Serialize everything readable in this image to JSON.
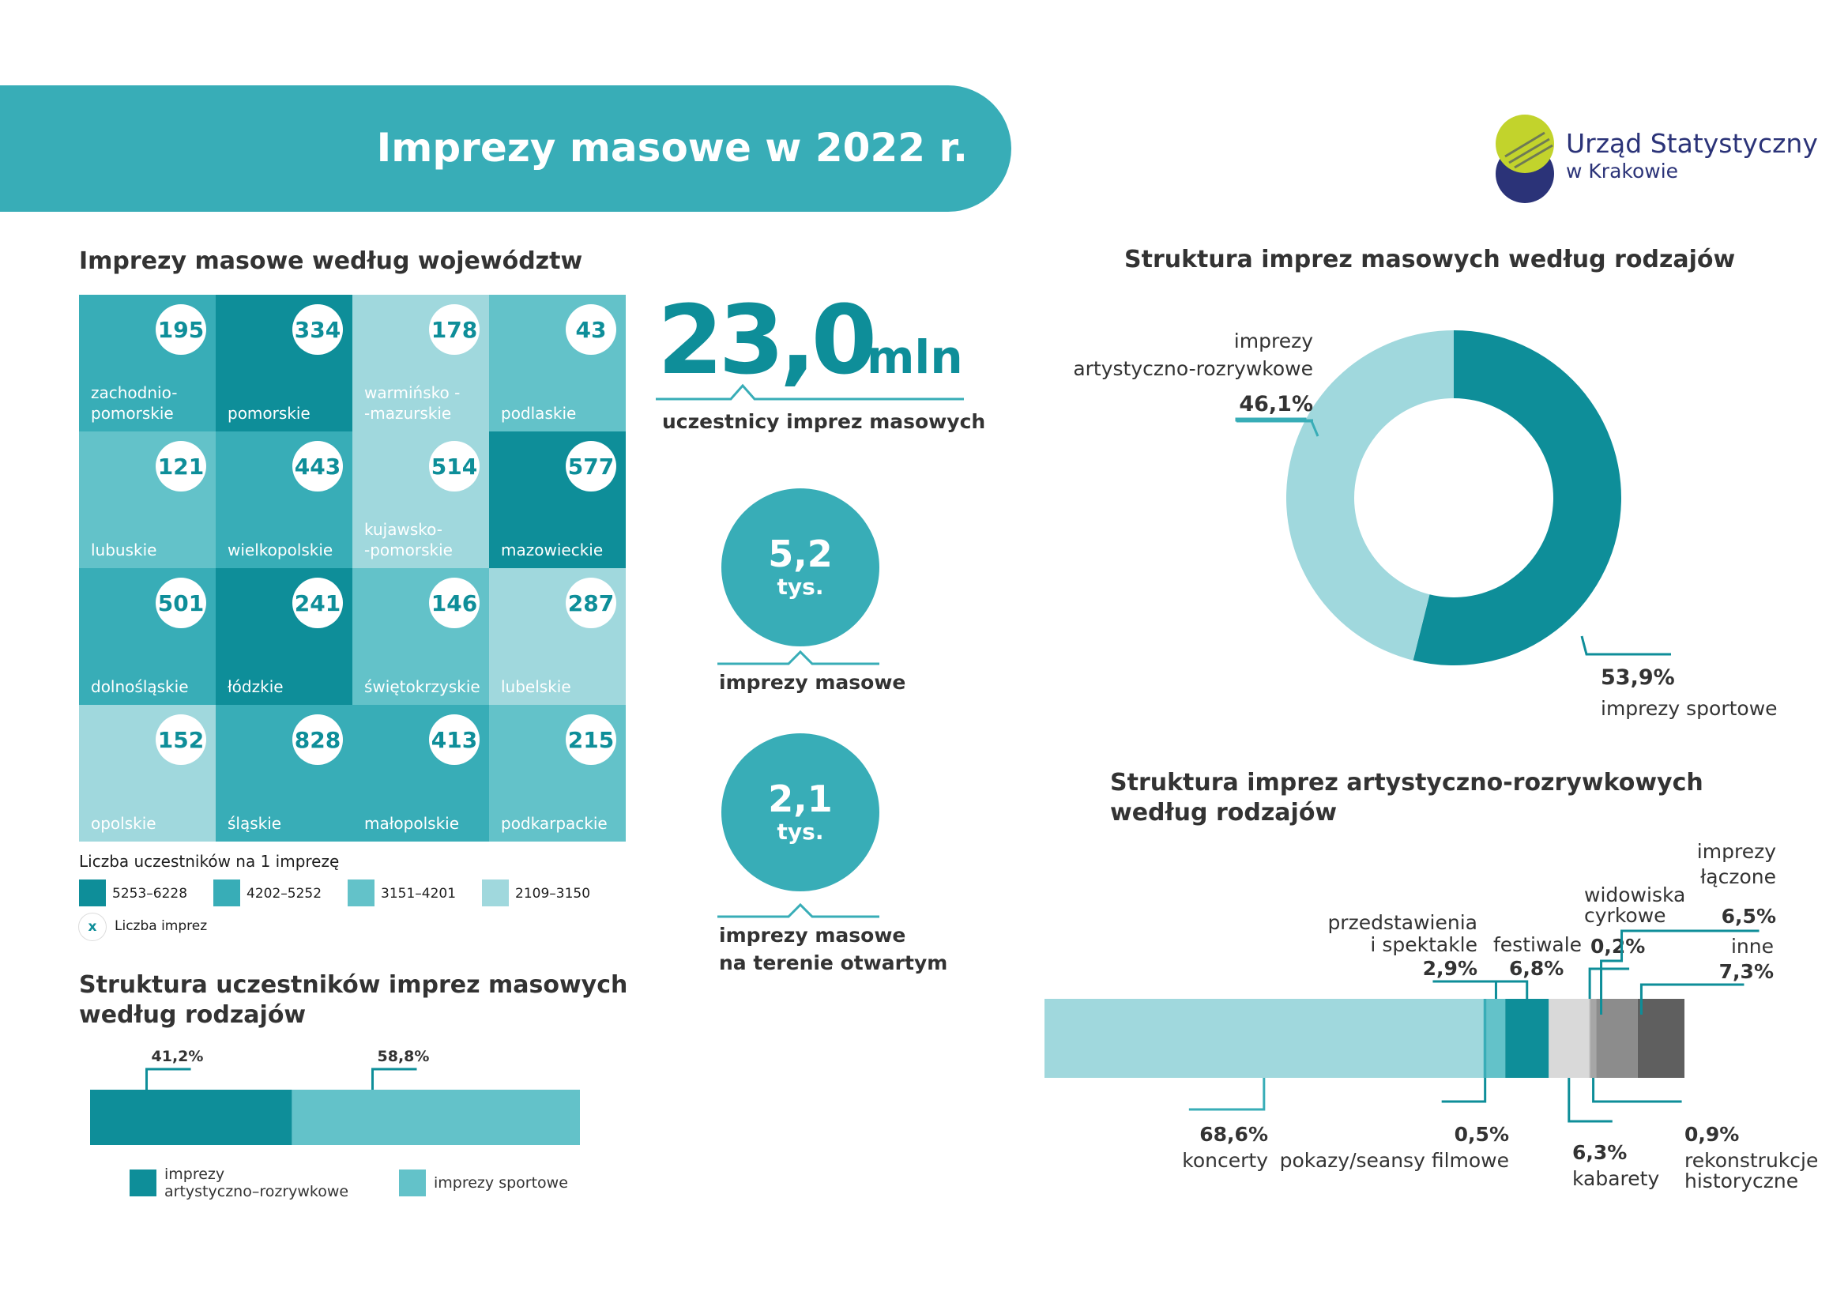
{
  "banner": {
    "title": "Imprezy masowe w 2022 r."
  },
  "logo": {
    "line1": "Urząd Statystyczny",
    "line2": "w Krakowie"
  },
  "voivodeships": {
    "title": "Imprezy masowe według województw",
    "cells": [
      {
        "name": "zachodnio-\npomorskie",
        "value": "195",
        "color": "#38adb7"
      },
      {
        "name": "pomorskie",
        "value": "334",
        "color": "#0e8e99"
      },
      {
        "name": "warmińsko -\n-mazurskie",
        "value": "178",
        "color": "#a0d8dd"
      },
      {
        "name": "podlaskie",
        "value": "43",
        "color": "#63c2c9"
      },
      {
        "name": "lubuskie",
        "value": "121",
        "color": "#63c2c9"
      },
      {
        "name": "wielkopolskie",
        "value": "443",
        "color": "#38adb7"
      },
      {
        "name": "kujawsko-\n-pomorskie",
        "value": "514",
        "color": "#a0d8dd"
      },
      {
        "name": "mazowieckie",
        "value": "577",
        "color": "#0e8e99"
      },
      {
        "name": "dolnośląskie",
        "value": "501",
        "color": "#38adb7"
      },
      {
        "name": "łódzkie",
        "value": "241",
        "color": "#0e8e99"
      },
      {
        "name": "świętokrzyskie",
        "value": "146",
        "color": "#63c2c9"
      },
      {
        "name": "lubelskie",
        "value": "287",
        "color": "#a0d8dd"
      },
      {
        "name": "opolskie",
        "value": "152",
        "color": "#a0d8dd"
      },
      {
        "name": "śląskie",
        "value": "828",
        "color": "#38adb7"
      },
      {
        "name": "małopolskie",
        "value": "413",
        "color": "#38adb7"
      },
      {
        "name": "podkarpackie",
        "value": "215",
        "color": "#63c2c9"
      }
    ],
    "legend_title": "Liczba uczestników na 1 imprezę",
    "legend": [
      {
        "range": "5253–6228",
        "color": "#0e8e99"
      },
      {
        "range": "4202–5252",
        "color": "#38adb7"
      },
      {
        "range": "3151–4201",
        "color": "#63c2c9"
      },
      {
        "range": "2109–3150",
        "color": "#a0d8dd"
      }
    ],
    "legend_marker": "x",
    "legend_marker_label": "Liczba imprez"
  },
  "stats": {
    "participants_value": "23,0",
    "participants_unit": "mln",
    "participants_label": "uczestnicy imprez masowych",
    "events_value": "5,2",
    "events_unit": "tys.",
    "events_label": "imprezy masowe",
    "open_value": "2,1",
    "open_unit": "tys.",
    "open_label_1": "imprezy masowe",
    "open_label_2": "na terenie otwartym"
  },
  "participants_structure": {
    "title_1": "Struktura uczestników imprez masowych",
    "title_2": "według rodzajów",
    "segments": [
      {
        "label": "imprezy\nartystyczno–rozrywkowe",
        "value": 41.2,
        "pct": "41,2%",
        "color": "#0e8e99"
      },
      {
        "label": "imprezy sportowe",
        "value": 58.8,
        "pct": "58,8%",
        "color": "#63c2c9"
      }
    ]
  },
  "donut": {
    "title": "Struktura imprez masowych według rodzajów",
    "slices": [
      {
        "label_1": "imprezy",
        "label_2": "artystyczno-rozrywkowe",
        "value": 46.1,
        "pct": "46,1%",
        "color": "#a0d8dd"
      },
      {
        "label_1": "imprezy sportowe",
        "label_2": "",
        "value": 53.9,
        "pct": "53,9%",
        "color": "#0e8e99"
      }
    ]
  },
  "artistic": {
    "title_1": "Struktura imprez artystyczno-rozrywkowych",
    "title_2": "według rodzajów",
    "segments": [
      {
        "label": "koncerty",
        "value": 68.6,
        "pct": "68,6%",
        "color": "#a0d8dd"
      },
      {
        "label": "pokazy/seansy filmowe",
        "value": 0.5,
        "pct": "0,5%",
        "color": "#38adb7"
      },
      {
        "label": "przedstawienia i spektakle",
        "value": 2.9,
        "pct": "2,9%",
        "color": "#63c2c9"
      },
      {
        "label": "festiwale",
        "value": 6.8,
        "pct": "6,8%",
        "color": "#0e8e99"
      },
      {
        "label": "kabarety",
        "value": 6.3,
        "pct": "6,3%",
        "color": "#d9d9d9"
      },
      {
        "label": "widowiska cyrkowe",
        "value": 0.2,
        "pct": "0,2%",
        "color": "#bdbdbd"
      },
      {
        "label": "rekonstrukcje historyczne",
        "value": 0.9,
        "pct": "0,9%",
        "color": "#a6a6a6"
      },
      {
        "label": "imprezy łączone",
        "value": 6.5,
        "pct": "6,5%",
        "color": "#8c8c8c"
      },
      {
        "label": "inne",
        "value": 7.3,
        "pct": "7,3%",
        "color": "#5f5f5f"
      }
    ],
    "labels": {
      "koncerty": "koncerty",
      "pokazy": "pokazy/seansy filmowe",
      "przedstawienia_1": "przedstawienia",
      "przedstawienia_2": "i spektakle",
      "festiwale": "festiwale",
      "kabarety": "kabarety",
      "cyrkowe_1": "widowiska",
      "cyrkowe_2": "cyrkowe",
      "rekonstrukcje_1": "rekonstrukcje",
      "rekonstrukcje_2": "historyczne",
      "laczone_1": "imprezy",
      "laczone_2": "łączone",
      "inne": "inne"
    }
  },
  "colors": {
    "dark_teal": "#0e8e99",
    "teal": "#38adb7",
    "mid_teal": "#63c2c9",
    "light_teal": "#a0d8dd",
    "logo_navy": "#2b3378",
    "logo_lime": "#c2d32c"
  }
}
